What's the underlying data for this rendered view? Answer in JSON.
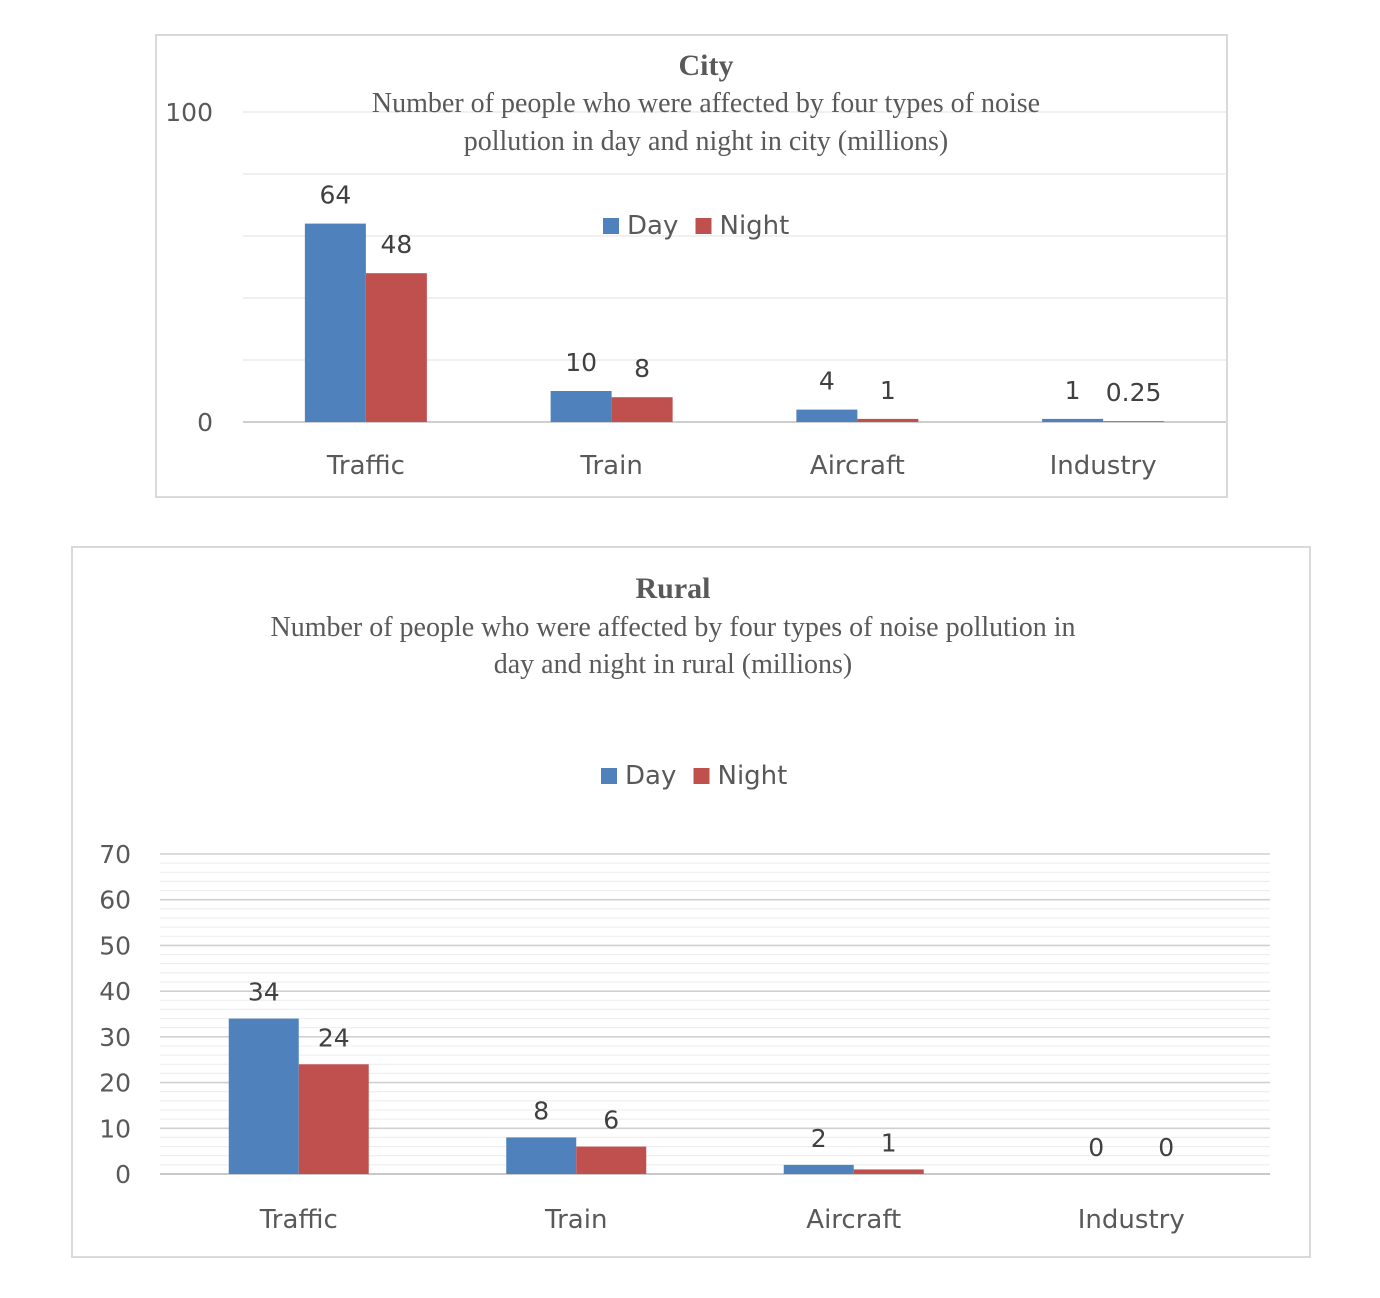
{
  "colors": {
    "day": "#4f81bd",
    "night": "#c0504d",
    "grid": "#d9d9d9",
    "axis": "#bfbfbf",
    "text": "#595959"
  },
  "chart_data": [
    {
      "type": "bar",
      "title": "City",
      "subtitle_lines": [
        "Number of people who were affected by four types of noise",
        "pollution in day and night in city (millions)"
      ],
      "categories": [
        "Traffic",
        "Train",
        "Aircraft",
        "Industry"
      ],
      "series": [
        {
          "name": "Day",
          "values": [
            64,
            10,
            4,
            1
          ],
          "labels": [
            "64",
            "10",
            "4",
            "1"
          ]
        },
        {
          "name": "Night",
          "values": [
            48,
            8,
            1,
            0.25
          ],
          "labels": [
            "48",
            "8",
            "1",
            "0.25"
          ]
        }
      ],
      "ylim": [
        0,
        100
      ],
      "yticks": [
        0,
        100
      ],
      "grid": true,
      "legend": "top-center"
    },
    {
      "type": "bar",
      "title": "Rural",
      "subtitle_lines": [
        "Number of people who were affected by four types of noise pollution in",
        "day and night in rural (millions)"
      ],
      "categories": [
        "Traffic",
        "Train",
        "Aircraft",
        "Industry"
      ],
      "series": [
        {
          "name": "Day",
          "values": [
            34,
            8,
            2,
            0
          ],
          "labels": [
            "34",
            "8",
            "2",
            "0"
          ]
        },
        {
          "name": "Night",
          "values": [
            24,
            6,
            1,
            0
          ],
          "labels": [
            "24",
            "6",
            "1",
            "0"
          ]
        }
      ],
      "ylim": [
        0,
        70
      ],
      "yticks": [
        0,
        10,
        20,
        30,
        40,
        50,
        60,
        70
      ],
      "grid": true,
      "legend": "top-center"
    }
  ]
}
